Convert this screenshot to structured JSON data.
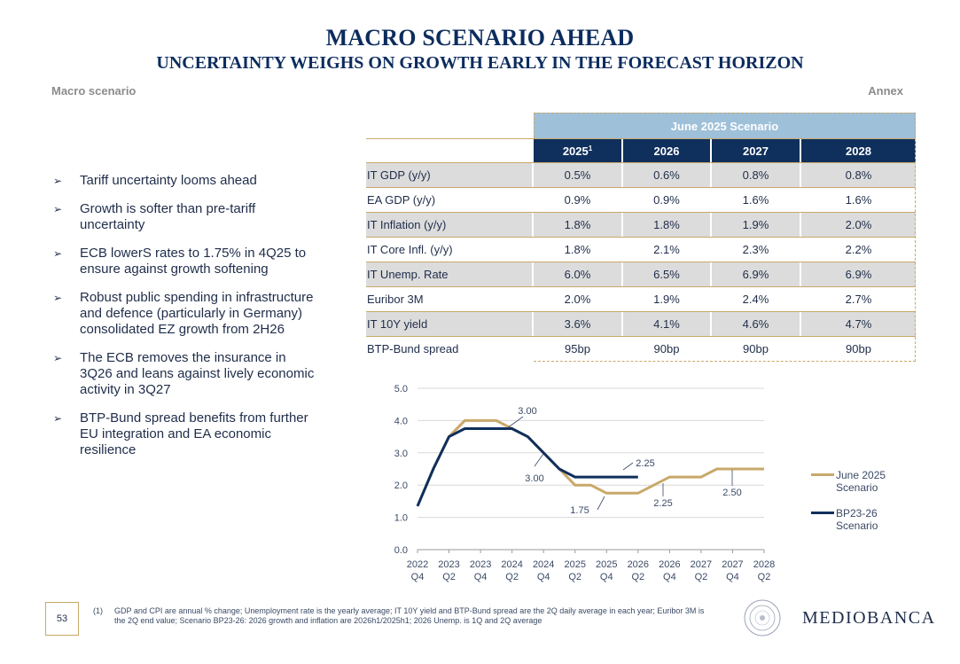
{
  "header": {
    "title": "MACRO SCENARIO AHEAD",
    "subtitle": "UNCERTAINTY  WEIGHS ON GROWTH EARLY IN THE FORECAST HORIZON",
    "section_left": "Macro scenario",
    "section_right": "Annex"
  },
  "bullets": [
    "Tariff uncertainty looms ahead",
    "Growth is softer than pre-tariff uncertainty",
    "ECB lowerS rates to 1.75% in 4Q25 to ensure against growth softening",
    "Robust public spending in infrastructure and defence (particularly in Germany) consolidated EZ growth from 2H26",
    "The ECB removes the insurance in 3Q26 and leans against lively economic activity in 3Q27",
    "BTP-Bund spread benefits from further EU integration and EA economic resilience"
  ],
  "table": {
    "scenario_header": "June 2025 Scenario",
    "years": [
      "2025",
      "2026",
      "2027",
      "2028"
    ],
    "first_year_footnote": "1",
    "rows": [
      {
        "label": "IT GDP (y/y)",
        "values": [
          "0.5%",
          "0.6%",
          "0.8%",
          "0.8%"
        ]
      },
      {
        "label": "EA GDP (y/y)",
        "values": [
          "0.9%",
          "0.9%",
          "1.6%",
          "1.6%"
        ]
      },
      {
        "label": "IT Inflation (y/y)",
        "values": [
          "1.8%",
          "1.8%",
          "1.9%",
          "2.0%"
        ]
      },
      {
        "label": "IT Core Infl. (y/y)",
        "values": [
          "1.8%",
          "2.1%",
          "2.3%",
          "2.2%"
        ]
      },
      {
        "label": "IT Unemp. Rate",
        "values": [
          "6.0%",
          "6.5%",
          "6.9%",
          "6.9%"
        ]
      },
      {
        "label": "Euribor 3M",
        "values": [
          "2.0%",
          "1.9%",
          "2.4%",
          "2.7%"
        ]
      },
      {
        "label": "IT 10Y yield",
        "values": [
          "3.6%",
          "4.1%",
          "4.6%",
          "4.7%"
        ]
      },
      {
        "label": "BTP-Bund spread",
        "values": [
          "95bp",
          "90bp",
          "90bp",
          "90bp"
        ]
      }
    ]
  },
  "chart_data": {
    "type": "line",
    "title": "",
    "xlabel": "",
    "ylabel": "",
    "ylim": [
      0,
      5
    ],
    "yticks": [
      "0.0",
      "1.0",
      "2.0",
      "3.0",
      "4.0",
      "5.0"
    ],
    "x_tick_labels": [
      [
        "2022",
        "Q4"
      ],
      [
        "2023",
        "Q2"
      ],
      [
        "2023",
        "Q4"
      ],
      [
        "2024",
        "Q2"
      ],
      [
        "2024",
        "Q4"
      ],
      [
        "2025",
        "Q2"
      ],
      [
        "2025",
        "Q4"
      ],
      [
        "2026",
        "Q2"
      ],
      [
        "2026",
        "Q4"
      ],
      [
        "2027",
        "Q2"
      ],
      [
        "2027",
        "Q4"
      ],
      [
        "2028",
        "Q2"
      ]
    ],
    "x": [
      "2022Q4",
      "2023Q1",
      "2023Q2",
      "2023Q3",
      "2023Q4",
      "2024Q1",
      "2024Q2",
      "2024Q3",
      "2024Q4",
      "2025Q1",
      "2025Q2",
      "2025Q3",
      "2025Q4",
      "2026Q1",
      "2026Q2",
      "2026Q3",
      "2026Q4",
      "2027Q1",
      "2027Q2",
      "2027Q3",
      "2027Q4",
      "2028Q1",
      "2028Q2"
    ],
    "series": [
      {
        "name": "June 2025 Scenario",
        "color": "#c9a86a",
        "values": [
          1.35,
          2.5,
          3.5,
          4.0,
          4.0,
          4.0,
          3.75,
          3.5,
          3.0,
          2.5,
          2.0,
          2.0,
          1.75,
          1.75,
          1.75,
          2.0,
          2.25,
          2.25,
          2.25,
          2.5,
          2.5,
          2.5,
          2.5
        ]
      },
      {
        "name": "BP23-26 Scenario",
        "color": "#0f2f5c",
        "values": [
          1.35,
          2.5,
          3.5,
          3.75,
          3.75,
          3.75,
          3.75,
          3.5,
          3.0,
          2.5,
          2.25,
          2.25,
          2.25,
          2.25,
          2.25,
          null,
          null,
          null,
          null,
          null,
          null,
          null,
          null
        ]
      }
    ],
    "annotations": [
      "3.00",
      "3.00",
      "2.25",
      "1.75",
      "2.25",
      "2.50"
    ],
    "legend": [
      "June 2025 Scenario",
      "BP23-26 Scenario"
    ],
    "legend_placement": "right"
  },
  "legend_labels": {
    "june_line1": "June 2025",
    "june_line2": "Scenario",
    "bp_line1": "BP23-26",
    "bp_line2": "Scenario"
  },
  "footer": {
    "page_number": "53",
    "footnote_mark": "(1)",
    "footnote": "GDP and CPI are annual % change; Unemployment rate is the yearly average; IT 10Y yield and BTP-Bund spread are the 2Q daily average in each year; Euribor 3M is the 2Q end value; Scenario BP23-26: 2026 growth and inflation are 2026h1/2025h1; 2026 Unemp. is 1Q and 2Q average",
    "logo_text": "MEDIOBANCA"
  },
  "colors": {
    "navy": "#0f2f5c",
    "gold": "#c9a86a",
    "light_blue": "#9fc0d9",
    "grey_row": "#dcdcdc"
  }
}
